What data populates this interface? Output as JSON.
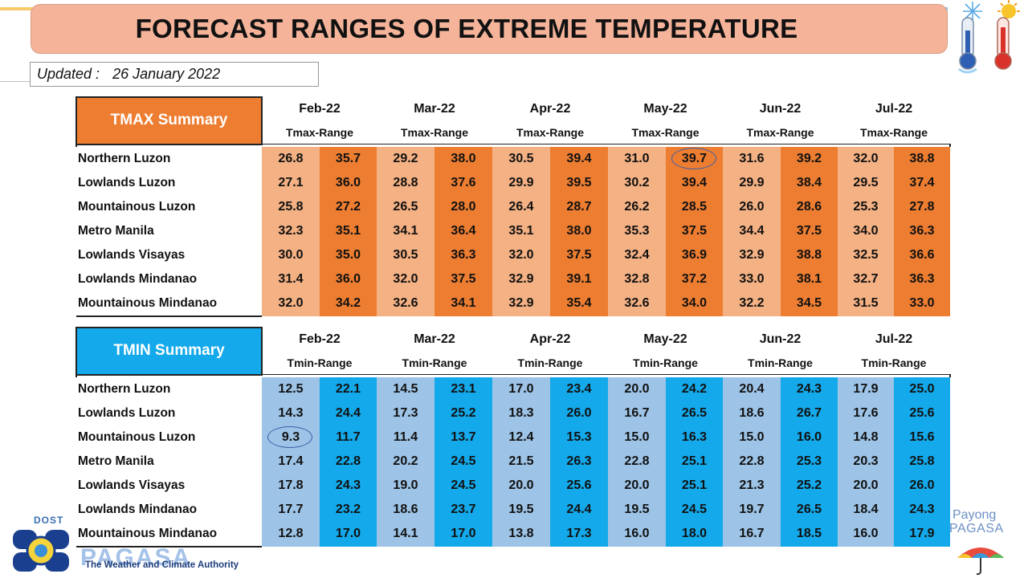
{
  "title": "FORECAST RANGES OF EXTREME TEMPERATURE",
  "updated_label": "Updated :",
  "updated_date": "26 January 2022",
  "tmax": {
    "title": "TMAX Summary",
    "range_label": "Tmax-Range",
    "months": [
      "Feb-22",
      "Mar-22",
      "Apr-22",
      "May-22",
      "Jun-22",
      "Jul-22"
    ],
    "rows": [
      {
        "region": "Northern Luzon",
        "values": [
          "26.8",
          "35.7",
          "29.2",
          "38.0",
          "30.5",
          "39.4",
          "31.0",
          "39.7",
          "31.6",
          "39.2",
          "32.0",
          "38.8"
        ]
      },
      {
        "region": "Lowlands Luzon",
        "values": [
          "27.1",
          "36.0",
          "28.8",
          "37.6",
          "29.9",
          "39.5",
          "30.2",
          "39.4",
          "29.9",
          "38.4",
          "29.5",
          "37.4"
        ]
      },
      {
        "region": "Mountainous Luzon",
        "values": [
          "25.8",
          "27.2",
          "26.5",
          "28.0",
          "26.4",
          "28.7",
          "26.2",
          "28.5",
          "26.0",
          "28.6",
          "25.3",
          "27.8"
        ]
      },
      {
        "region": "Metro Manila",
        "values": [
          "32.3",
          "35.1",
          "34.1",
          "36.4",
          "35.1",
          "38.0",
          "35.3",
          "37.5",
          "34.4",
          "37.5",
          "34.0",
          "36.3"
        ]
      },
      {
        "region": "Lowlands Visayas",
        "values": [
          "30.0",
          "35.0",
          "30.5",
          "36.3",
          "32.0",
          "37.5",
          "32.4",
          "36.9",
          "32.9",
          "38.8",
          "32.5",
          "36.6"
        ]
      },
      {
        "region": "Lowlands Mindanao",
        "values": [
          "31.4",
          "36.0",
          "32.0",
          "37.5",
          "32.9",
          "39.1",
          "32.8",
          "37.2",
          "33.0",
          "38.1",
          "32.7",
          "36.3"
        ]
      },
      {
        "region": "Mountainous Mindanao",
        "values": [
          "32.0",
          "34.2",
          "32.6",
          "34.1",
          "32.9",
          "35.4",
          "32.6",
          "34.0",
          "32.2",
          "34.5",
          "31.5",
          "33.0"
        ]
      }
    ],
    "highlight": {
      "row": 0,
      "col": 7
    }
  },
  "tmin": {
    "title": "TMIN Summary",
    "range_label": "Tmin-Range",
    "months": [
      "Feb-22",
      "Mar-22",
      "Apr-22",
      "May-22",
      "Jun-22",
      "Jul-22"
    ],
    "rows": [
      {
        "region": "Northern Luzon",
        "values": [
          "12.5",
          "22.1",
          "14.5",
          "23.1",
          "17.0",
          "23.4",
          "20.0",
          "24.2",
          "20.4",
          "24.3",
          "17.9",
          "25.0"
        ]
      },
      {
        "region": "Lowlands Luzon",
        "values": [
          "14.3",
          "24.4",
          "17.3",
          "25.2",
          "18.3",
          "26.0",
          "16.7",
          "26.5",
          "18.6",
          "26.7",
          "17.6",
          "25.6"
        ]
      },
      {
        "region": "Mountainous Luzon",
        "values": [
          "9.3",
          "11.7",
          "11.4",
          "13.7",
          "12.4",
          "15.3",
          "15.0",
          "16.3",
          "15.0",
          "16.0",
          "14.8",
          "15.6"
        ]
      },
      {
        "region": "Metro Manila",
        "values": [
          "17.4",
          "22.8",
          "20.2",
          "24.5",
          "21.5",
          "26.3",
          "22.8",
          "25.1",
          "22.8",
          "25.3",
          "20.3",
          "25.8"
        ]
      },
      {
        "region": "Lowlands Visayas",
        "values": [
          "17.8",
          "24.3",
          "19.0",
          "24.5",
          "20.0",
          "25.6",
          "20.0",
          "25.1",
          "21.3",
          "25.2",
          "20.0",
          "26.0"
        ]
      },
      {
        "region": "Lowlands Mindanao",
        "values": [
          "17.7",
          "23.2",
          "18.6",
          "23.7",
          "19.5",
          "24.4",
          "19.5",
          "24.5",
          "19.7",
          "26.5",
          "18.4",
          "24.3"
        ]
      },
      {
        "region": "Mountainous Mindanao",
        "values": [
          "12.8",
          "17.0",
          "14.1",
          "17.0",
          "13.8",
          "17.3",
          "16.0",
          "18.0",
          "16.7",
          "18.5",
          "16.0",
          "17.9"
        ]
      }
    ],
    "highlight": {
      "row": 2,
      "col": 0
    }
  },
  "logo_left": {
    "dost": "DOST",
    "wordmark": "PAGASA",
    "tagline": "The Weather and Climate Authority"
  },
  "logo_right": {
    "line1": "Payong",
    "line2": "PAGASA"
  },
  "colors": {
    "tmax_dark": "#ed7d31",
    "tmax_light": "#f4b183",
    "tmin_dark": "#13a9ea",
    "tmin_light": "#9dc3e6",
    "title_bg": "#f5b49a"
  },
  "icons": [
    "snowflake-thermometer-icon",
    "sun-thermometer-icon",
    "umbrella-icon",
    "pagasa-seal-icon"
  ]
}
